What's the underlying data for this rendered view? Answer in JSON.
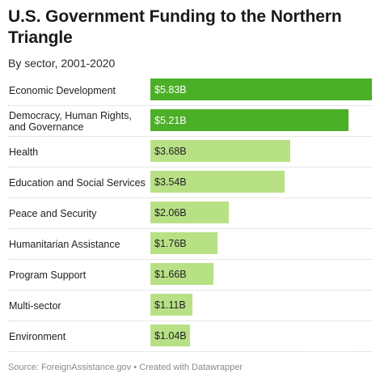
{
  "header": {
    "title": "U.S. Government Funding to the Northern Triangle",
    "subtitle": "By sector, 2001-2020"
  },
  "footer": {
    "source": "Source: ForeignAssistance.gov • Created with Datawrapper"
  },
  "colors": {
    "highlight_bar": "#4caf28",
    "regular_bar": "#b8e186",
    "highlight_text": "#ffffff",
    "regular_text": "#222222"
  },
  "chart_data": {
    "type": "bar",
    "orientation": "horizontal",
    "title": "U.S. Government Funding to the Northern Triangle",
    "subtitle": "By sector, 2001-2020",
    "categories": [
      "Economic Development",
      "Democracy, Human Rights, and Governance",
      "Health",
      "Education and Social Services",
      "Peace and Security",
      "Humanitarian Assistance",
      "Program Support",
      "Multi-sector",
      "Environment"
    ],
    "values": [
      5.83,
      5.21,
      3.68,
      3.54,
      2.06,
      1.76,
      1.66,
      1.11,
      1.04
    ],
    "value_labels": [
      "$5.83B",
      "$5.21B",
      "$3.68B",
      "$3.54B",
      "$2.06B",
      "$1.76B",
      "$1.66B",
      "$1.11B",
      "$1.04B"
    ],
    "highlighted": [
      true,
      true,
      false,
      false,
      false,
      false,
      false,
      false,
      false
    ],
    "xlim": [
      0,
      5.83
    ],
    "grid": false,
    "legend": "none"
  }
}
